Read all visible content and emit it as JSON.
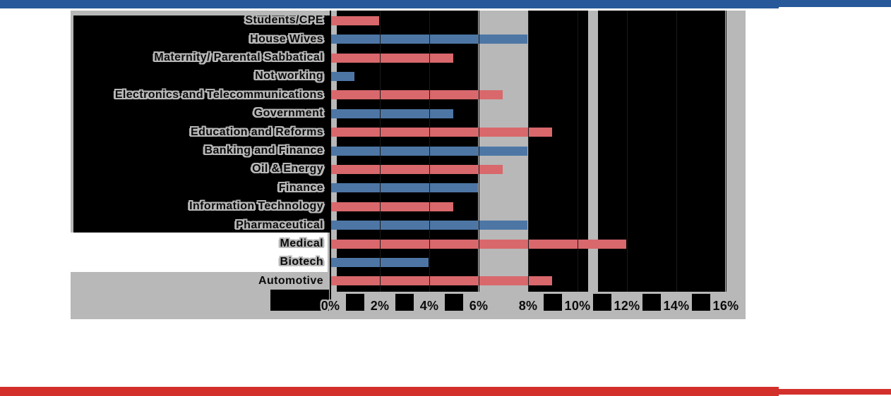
{
  "page": {
    "top_banner_color": "#27599a",
    "bottom_banner_color": "#d3302c",
    "background_color": "#ffffff"
  },
  "chart_data": {
    "type": "bar",
    "orientation": "horizontal",
    "categories": [
      "Students/CPE",
      "House Wives",
      "Maternity/ Parental Sabbatical",
      "Not working",
      "Electronics and Telecommunications",
      "Government",
      "Education and Reforms",
      "Banking and Finance",
      "Oil & Energy",
      "Finance",
      "Information Technology",
      "Pharmaceutical",
      "Medical",
      "Biotech",
      "Automotive"
    ],
    "values_percent": [
      2,
      8,
      5,
      1,
      7,
      5,
      9,
      8,
      7,
      6,
      5,
      8,
      12,
      4,
      9
    ],
    "x_ticks": [
      "0%",
      "2%",
      "4%",
      "6%",
      "8%",
      "10%",
      "12%",
      "14%",
      "16%"
    ],
    "xlim": [
      0,
      16
    ],
    "tick_step_percent": 2,
    "xlabel": "",
    "ylabel": "",
    "legend": "none",
    "grid": "vertical gridlines every 2%, drawn over bars",
    "colors": {
      "bar_red": "#d8686c",
      "bar_blue": "#4d76a5",
      "plot_background": "#000000",
      "panel_background": "#b8b8b8",
      "label_text": "#0b0b0b"
    },
    "color_pattern": "bars alternate red (odd rows) and blue (even rows) starting with red at top"
  }
}
